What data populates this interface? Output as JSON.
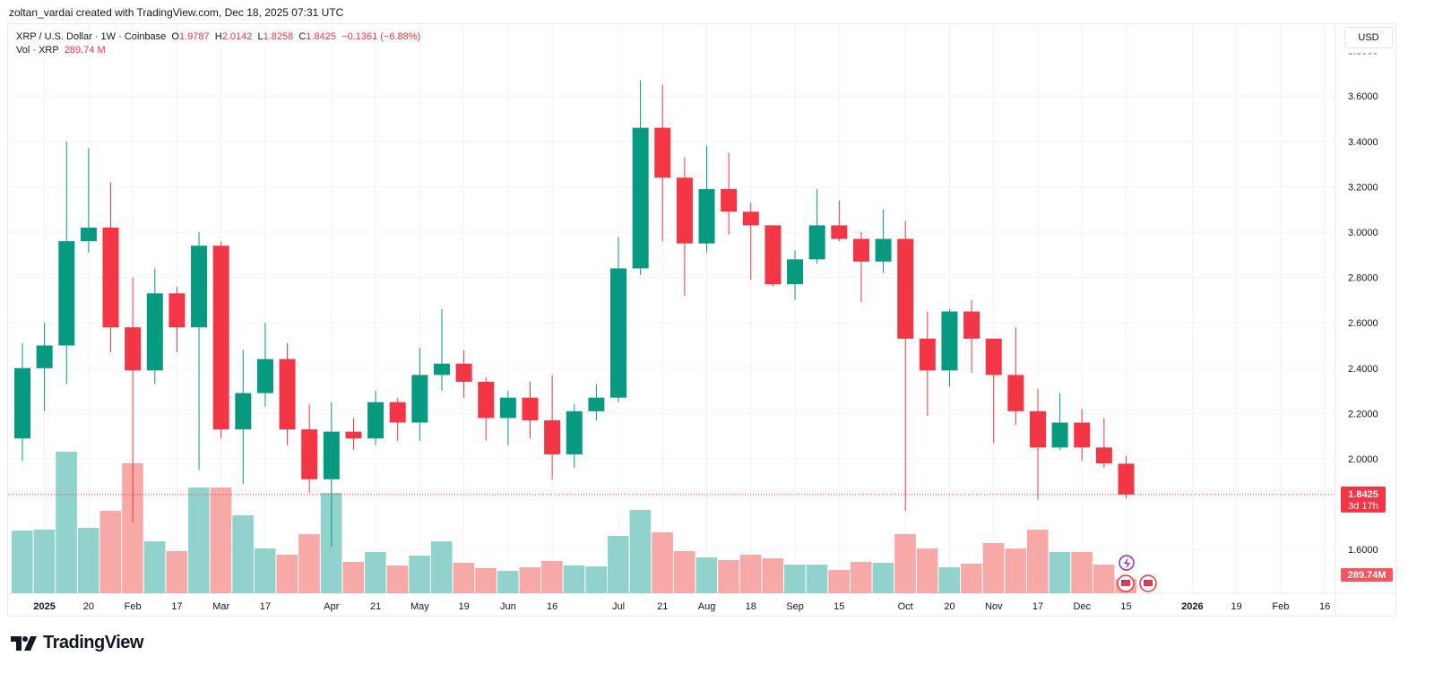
{
  "credit": "zoltan_vardai created with TradingView.com, Dec 18, 2025 07:31 UTC",
  "legend": {
    "symbol": "XRP / U.S. Dollar · 1W · Coinbase",
    "o_label": "O",
    "o": "1.9787",
    "h_label": "H",
    "h": "2.0142",
    "l_label": "L",
    "l": "1.8258",
    "c_label": "C",
    "c": "1.8425",
    "change": "−0.1361 (−6.88%)",
    "vol_label": "Vol · XRP",
    "vol": "289.74 M"
  },
  "currency_button": "USD",
  "price_badge": {
    "price": "1.8425",
    "countdown": "3d 17h"
  },
  "volume_badge": "289.74M",
  "logo_text": "TradingView",
  "colors": {
    "up": "#089981",
    "down": "#f23645",
    "vol_up": "#92d2cc",
    "vol_down": "#f7a9a7",
    "grid": "#f2f3f5"
  },
  "chart_data": {
    "type": "candlestick",
    "interval": "1W",
    "ylim": [
      1.55,
      3.8
    ],
    "y_ticks": [
      "3.6000",
      "3.4000",
      "3.2000",
      "3.0000",
      "2.8000",
      "2.6000",
      "2.4000",
      "2.2000",
      "2.0000",
      "1.6000"
    ],
    "x_ticks": [
      {
        "date": "2025-01-06",
        "label": "2025"
      },
      {
        "date": "2025-01-20",
        "label": "20"
      },
      {
        "date": "2025-02-03",
        "label": "Feb"
      },
      {
        "date": "2025-02-17",
        "label": "17"
      },
      {
        "date": "2025-03-03",
        "label": "Mar"
      },
      {
        "date": "2025-03-17",
        "label": "17"
      },
      {
        "date": "2025-04-07",
        "label": "Apr"
      },
      {
        "date": "2025-04-21",
        "label": "21"
      },
      {
        "date": "2025-05-05",
        "label": "May"
      },
      {
        "date": "2025-05-19",
        "label": "19"
      },
      {
        "date": "2025-06-02",
        "label": "Jun"
      },
      {
        "date": "2025-06-16",
        "label": "16"
      },
      {
        "date": "2025-07-07",
        "label": "Jul"
      },
      {
        "date": "2025-07-21",
        "label": "21"
      },
      {
        "date": "2025-08-04",
        "label": "Aug"
      },
      {
        "date": "2025-08-18",
        "label": "18"
      },
      {
        "date": "2025-09-01",
        "label": "Sep"
      },
      {
        "date": "2025-09-15",
        "label": "15"
      },
      {
        "date": "2025-10-06",
        "label": "Oct"
      },
      {
        "date": "2025-10-20",
        "label": "20"
      },
      {
        "date": "2025-11-03",
        "label": "Nov"
      },
      {
        "date": "2025-11-17",
        "label": "17"
      },
      {
        "date": "2025-12-01",
        "label": "Dec"
      },
      {
        "date": "2025-12-15",
        "label": "15"
      },
      {
        "date": "2026-01-05",
        "label": "2026"
      },
      {
        "date": "2026-01-19",
        "label": "19"
      },
      {
        "date": "2026-02-02",
        "label": "Feb"
      },
      {
        "date": "2026-02-16",
        "label": "16"
      }
    ],
    "last_price": 1.8425,
    "volume_unit": "M",
    "candles": [
      {
        "d": "2024-12-30",
        "o": 2.09,
        "h": 2.51,
        "l": 1.99,
        "c": 2.4,
        "v": 1267
      },
      {
        "d": "2025-01-06",
        "o": 2.4,
        "h": 2.6,
        "l": 2.21,
        "c": 2.5,
        "v": 1285
      },
      {
        "d": "2025-01-13",
        "o": 2.5,
        "h": 3.4,
        "l": 2.33,
        "c": 2.96,
        "v": 2860
      },
      {
        "d": "2025-01-20",
        "o": 2.96,
        "h": 3.37,
        "l": 2.91,
        "c": 3.02,
        "v": 1321
      },
      {
        "d": "2025-01-27",
        "o": 3.02,
        "h": 3.22,
        "l": 2.47,
        "c": 2.58,
        "v": 1665
      },
      {
        "d": "2025-02-03",
        "o": 2.58,
        "h": 2.8,
        "l": 1.72,
        "c": 2.39,
        "v": 2625
      },
      {
        "d": "2025-02-10",
        "o": 2.39,
        "h": 2.84,
        "l": 2.33,
        "c": 2.73,
        "v": 1050
      },
      {
        "d": "2025-02-17",
        "o": 2.73,
        "h": 2.76,
        "l": 2.47,
        "c": 2.58,
        "v": 851
      },
      {
        "d": "2025-02-24",
        "o": 2.58,
        "h": 3.0,
        "l": 1.95,
        "c": 2.94,
        "v": 2136
      },
      {
        "d": "2025-03-03",
        "o": 2.94,
        "h": 2.96,
        "l": 2.09,
        "c": 2.13,
        "v": 2136
      },
      {
        "d": "2025-03-10",
        "o": 2.13,
        "h": 2.48,
        "l": 1.89,
        "c": 2.29,
        "v": 1575
      },
      {
        "d": "2025-03-17",
        "o": 2.29,
        "h": 2.6,
        "l": 2.23,
        "c": 2.44,
        "v": 905
      },
      {
        "d": "2025-03-24",
        "o": 2.44,
        "h": 2.51,
        "l": 2.06,
        "c": 2.13,
        "v": 778
      },
      {
        "d": "2025-03-31",
        "o": 2.13,
        "h": 2.24,
        "l": 1.85,
        "c": 1.91,
        "v": 1195
      },
      {
        "d": "2025-04-07",
        "o": 1.91,
        "h": 2.25,
        "l": 1.61,
        "c": 2.12,
        "v": 2027
      },
      {
        "d": "2025-04-14",
        "o": 2.12,
        "h": 2.18,
        "l": 2.04,
        "c": 2.09,
        "v": 634
      },
      {
        "d": "2025-04-21",
        "o": 2.09,
        "h": 2.3,
        "l": 2.06,
        "c": 2.25,
        "v": 833
      },
      {
        "d": "2025-04-28",
        "o": 2.25,
        "h": 2.27,
        "l": 2.08,
        "c": 2.16,
        "v": 561
      },
      {
        "d": "2025-05-05",
        "o": 2.16,
        "h": 2.49,
        "l": 2.08,
        "c": 2.37,
        "v": 760
      },
      {
        "d": "2025-05-12",
        "o": 2.37,
        "h": 2.66,
        "l": 2.3,
        "c": 2.42,
        "v": 1050
      },
      {
        "d": "2025-05-19",
        "o": 2.42,
        "h": 2.48,
        "l": 2.27,
        "c": 2.34,
        "v": 615
      },
      {
        "d": "2025-05-26",
        "o": 2.34,
        "h": 2.36,
        "l": 2.08,
        "c": 2.18,
        "v": 507
      },
      {
        "d": "2025-06-02",
        "o": 2.18,
        "h": 2.3,
        "l": 2.06,
        "c": 2.27,
        "v": 453
      },
      {
        "d": "2025-06-09",
        "o": 2.27,
        "h": 2.34,
        "l": 2.09,
        "c": 2.17,
        "v": 525
      },
      {
        "d": "2025-06-16",
        "o": 2.17,
        "h": 2.37,
        "l": 1.91,
        "c": 2.02,
        "v": 652
      },
      {
        "d": "2025-06-23",
        "o": 2.02,
        "h": 2.24,
        "l": 1.96,
        "c": 2.21,
        "v": 561
      },
      {
        "d": "2025-06-30",
        "o": 2.21,
        "h": 2.33,
        "l": 2.17,
        "c": 2.27,
        "v": 543
      },
      {
        "d": "2025-07-07",
        "o": 2.27,
        "h": 2.98,
        "l": 2.25,
        "c": 2.84,
        "v": 1158
      },
      {
        "d": "2025-07-14",
        "o": 2.84,
        "h": 3.67,
        "l": 2.81,
        "c": 3.46,
        "v": 1683
      },
      {
        "d": "2025-07-21",
        "o": 3.46,
        "h": 3.65,
        "l": 2.96,
        "c": 3.24,
        "v": 1231
      },
      {
        "d": "2025-07-28",
        "o": 3.24,
        "h": 3.33,
        "l": 2.72,
        "c": 2.95,
        "v": 851
      },
      {
        "d": "2025-08-04",
        "o": 2.95,
        "h": 3.38,
        "l": 2.91,
        "c": 3.19,
        "v": 724
      },
      {
        "d": "2025-08-11",
        "o": 3.19,
        "h": 3.35,
        "l": 2.99,
        "c": 3.09,
        "v": 670
      },
      {
        "d": "2025-08-18",
        "o": 3.09,
        "h": 3.13,
        "l": 2.79,
        "c": 3.03,
        "v": 778
      },
      {
        "d": "2025-08-25",
        "o": 3.03,
        "h": 3.03,
        "l": 2.76,
        "c": 2.77,
        "v": 706
      },
      {
        "d": "2025-09-01",
        "o": 2.77,
        "h": 2.92,
        "l": 2.7,
        "c": 2.88,
        "v": 579
      },
      {
        "d": "2025-09-08",
        "o": 2.88,
        "h": 3.19,
        "l": 2.86,
        "c": 3.03,
        "v": 579
      },
      {
        "d": "2025-09-15",
        "o": 3.03,
        "h": 3.14,
        "l": 2.96,
        "c": 2.97,
        "v": 471
      },
      {
        "d": "2025-09-22",
        "o": 2.97,
        "h": 3.0,
        "l": 2.69,
        "c": 2.87,
        "v": 634
      },
      {
        "d": "2025-09-29",
        "o": 2.87,
        "h": 3.1,
        "l": 2.82,
        "c": 2.97,
        "v": 615
      },
      {
        "d": "2025-10-06",
        "o": 2.97,
        "h": 3.05,
        "l": 1.77,
        "c": 2.53,
        "v": 1195
      },
      {
        "d": "2025-10-13",
        "o": 2.53,
        "h": 2.65,
        "l": 2.19,
        "c": 2.39,
        "v": 905
      },
      {
        "d": "2025-10-20",
        "o": 2.39,
        "h": 2.66,
        "l": 2.32,
        "c": 2.65,
        "v": 525
      },
      {
        "d": "2025-10-27",
        "o": 2.65,
        "h": 2.7,
        "l": 2.38,
        "c": 2.53,
        "v": 597
      },
      {
        "d": "2025-11-03",
        "o": 2.53,
        "h": 2.53,
        "l": 2.07,
        "c": 2.37,
        "v": 1014
      },
      {
        "d": "2025-11-10",
        "o": 2.37,
        "h": 2.58,
        "l": 2.15,
        "c": 2.21,
        "v": 905
      },
      {
        "d": "2025-11-17",
        "o": 2.21,
        "h": 2.31,
        "l": 1.82,
        "c": 2.05,
        "v": 1285
      },
      {
        "d": "2025-11-24",
        "o": 2.05,
        "h": 2.29,
        "l": 2.04,
        "c": 2.16,
        "v": 833
      },
      {
        "d": "2025-12-01",
        "o": 2.16,
        "h": 2.22,
        "l": 1.99,
        "c": 2.05,
        "v": 833
      },
      {
        "d": "2025-12-08",
        "o": 2.05,
        "h": 2.18,
        "l": 1.96,
        "c": 1.98,
        "v": 579
      },
      {
        "d": "2025-12-15",
        "o": 1.9787,
        "h": 2.0142,
        "l": 1.8258,
        "c": 1.8425,
        "v": 289.74
      }
    ]
  },
  "event_icons": [
    "lightning-icon",
    "us-flag-icon",
    "us-flag-icon"
  ]
}
